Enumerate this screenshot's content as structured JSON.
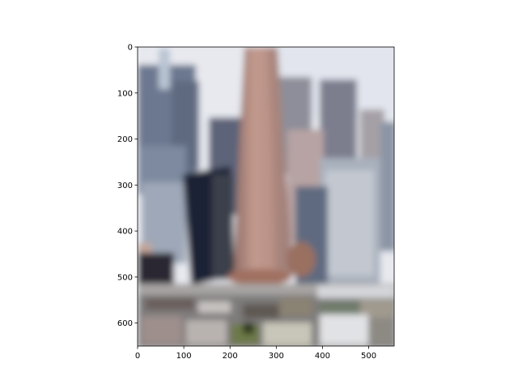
{
  "figure": {
    "background": "#ffffff"
  },
  "chart_data": {
    "type": "image",
    "image_extent": {
      "x": [
        0,
        555
      ],
      "y": [
        0,
        650
      ]
    },
    "y_inverted": true,
    "grid": false,
    "title": "",
    "xlabel": "",
    "ylabel": "",
    "xticks": [
      0,
      100,
      200,
      300,
      400,
      500
    ],
    "yticks": [
      0,
      100,
      200,
      300,
      400,
      500,
      600
    ],
    "image_description_colors": {
      "sky": "#e6e9f0",
      "tower": "#b88c80",
      "tower_shadow": "#8a6a62",
      "left_buildings": "#6f7c92",
      "dark_building": "#1e2638",
      "right_buildings": "#9aa3b0",
      "foreground": "#8c8a86"
    }
  }
}
